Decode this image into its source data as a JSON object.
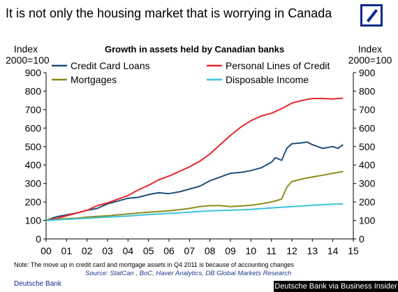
{
  "headline": "It is not only the housing market that is worrying in Canada",
  "brand": "Deutsche Bank",
  "credit": "Deutsche Bank via Business Insider",
  "note": "Note: The move up in credit card and mortgage assets in Q4 2011 is because of accounting changes",
  "source": "Source: StatCan , BoC, Haver Analytics, DB Global Markets Research",
  "logo_icon": "deutsche-bank-logo",
  "chart_data": {
    "type": "line",
    "title": "Growth in assets held by Canadian banks",
    "ylabel_left": [
      "Index",
      "2000=100"
    ],
    "ylabel_right": [
      "Index",
      "2000=100"
    ],
    "xlabel": "",
    "x_ticks": [
      "00",
      "01",
      "02",
      "03",
      "04",
      "05",
      "06",
      "07",
      "08",
      "09",
      "10",
      "11",
      "12",
      "13",
      "14",
      "15"
    ],
    "y_ticks": [
      0,
      100,
      200,
      300,
      400,
      500,
      600,
      700,
      800,
      900
    ],
    "xlim": [
      0,
      15
    ],
    "ylim": [
      0,
      900
    ],
    "grid": false,
    "legend": "top",
    "series": [
      {
        "name": "Credit Card Loans",
        "color": "#1f4e79",
        "points": [
          [
            0,
            100
          ],
          [
            0.5,
            120
          ],
          [
            1,
            130
          ],
          [
            1.5,
            140
          ],
          [
            2,
            155
          ],
          [
            2.5,
            165
          ],
          [
            3,
            190
          ],
          [
            3.5,
            205
          ],
          [
            4,
            220
          ],
          [
            4.5,
            225
          ],
          [
            5,
            240
          ],
          [
            5.5,
            250
          ],
          [
            6,
            245
          ],
          [
            6.5,
            255
          ],
          [
            7,
            270
          ],
          [
            7.5,
            285
          ],
          [
            8,
            315
          ],
          [
            8.5,
            335
          ],
          [
            9,
            355
          ],
          [
            9.5,
            360
          ],
          [
            10,
            370
          ],
          [
            10.5,
            385
          ],
          [
            11,
            415
          ],
          [
            11.2,
            440
          ],
          [
            11.5,
            425
          ],
          [
            11.75,
            490
          ],
          [
            12,
            515
          ],
          [
            12.5,
            520
          ],
          [
            12.75,
            525
          ],
          [
            13,
            510
          ],
          [
            13.5,
            490
          ],
          [
            14,
            500
          ],
          [
            14.25,
            490
          ],
          [
            14.5,
            510
          ]
        ]
      },
      {
        "name": "Personal Lines of Credit",
        "color": "#e8262b",
        "points": [
          [
            0,
            100
          ],
          [
            0.5,
            110
          ],
          [
            1,
            125
          ],
          [
            1.5,
            140
          ],
          [
            2,
            155
          ],
          [
            2.5,
            180
          ],
          [
            3,
            195
          ],
          [
            3.5,
            215
          ],
          [
            4,
            235
          ],
          [
            4.5,
            265
          ],
          [
            5,
            290
          ],
          [
            5.5,
            320
          ],
          [
            6,
            340
          ],
          [
            6.5,
            365
          ],
          [
            7,
            390
          ],
          [
            7.5,
            420
          ],
          [
            8,
            460
          ],
          [
            8.5,
            510
          ],
          [
            9,
            560
          ],
          [
            9.5,
            605
          ],
          [
            10,
            640
          ],
          [
            10.5,
            665
          ],
          [
            11,
            680
          ],
          [
            11.5,
            705
          ],
          [
            12,
            735
          ],
          [
            12.5,
            750
          ],
          [
            13,
            760
          ],
          [
            13.5,
            760
          ],
          [
            14,
            758
          ],
          [
            14.5,
            762
          ]
        ]
      },
      {
        "name": "Mortgages",
        "color": "#8b8b1e",
        "points": [
          [
            0,
            100
          ],
          [
            0.5,
            105
          ],
          [
            1,
            110
          ],
          [
            1.5,
            112
          ],
          [
            2,
            118
          ],
          [
            2.5,
            122
          ],
          [
            3,
            125
          ],
          [
            3.5,
            130
          ],
          [
            4,
            135
          ],
          [
            4.5,
            140
          ],
          [
            5,
            145
          ],
          [
            5.5,
            148
          ],
          [
            6,
            152
          ],
          [
            6.5,
            158
          ],
          [
            7,
            165
          ],
          [
            7.5,
            175
          ],
          [
            8,
            180
          ],
          [
            8.5,
            180
          ],
          [
            9,
            175
          ],
          [
            9.5,
            178
          ],
          [
            10,
            182
          ],
          [
            10.5,
            190
          ],
          [
            11,
            200
          ],
          [
            11.5,
            215
          ],
          [
            11.75,
            280
          ],
          [
            12,
            310
          ],
          [
            12.5,
            325
          ],
          [
            13,
            335
          ],
          [
            13.5,
            345
          ],
          [
            14,
            355
          ],
          [
            14.5,
            365
          ]
        ]
      },
      {
        "name": "Disposable Income",
        "color": "#3cc3d8",
        "points": [
          [
            0,
            100
          ],
          [
            1,
            106
          ],
          [
            2,
            112
          ],
          [
            3,
            118
          ],
          [
            4,
            124
          ],
          [
            5,
            132
          ],
          [
            6,
            138
          ],
          [
            7,
            145
          ],
          [
            8,
            152
          ],
          [
            9,
            155
          ],
          [
            10,
            160
          ],
          [
            11,
            168
          ],
          [
            12,
            175
          ],
          [
            13,
            182
          ],
          [
            14,
            188
          ],
          [
            14.5,
            190
          ]
        ]
      }
    ]
  }
}
